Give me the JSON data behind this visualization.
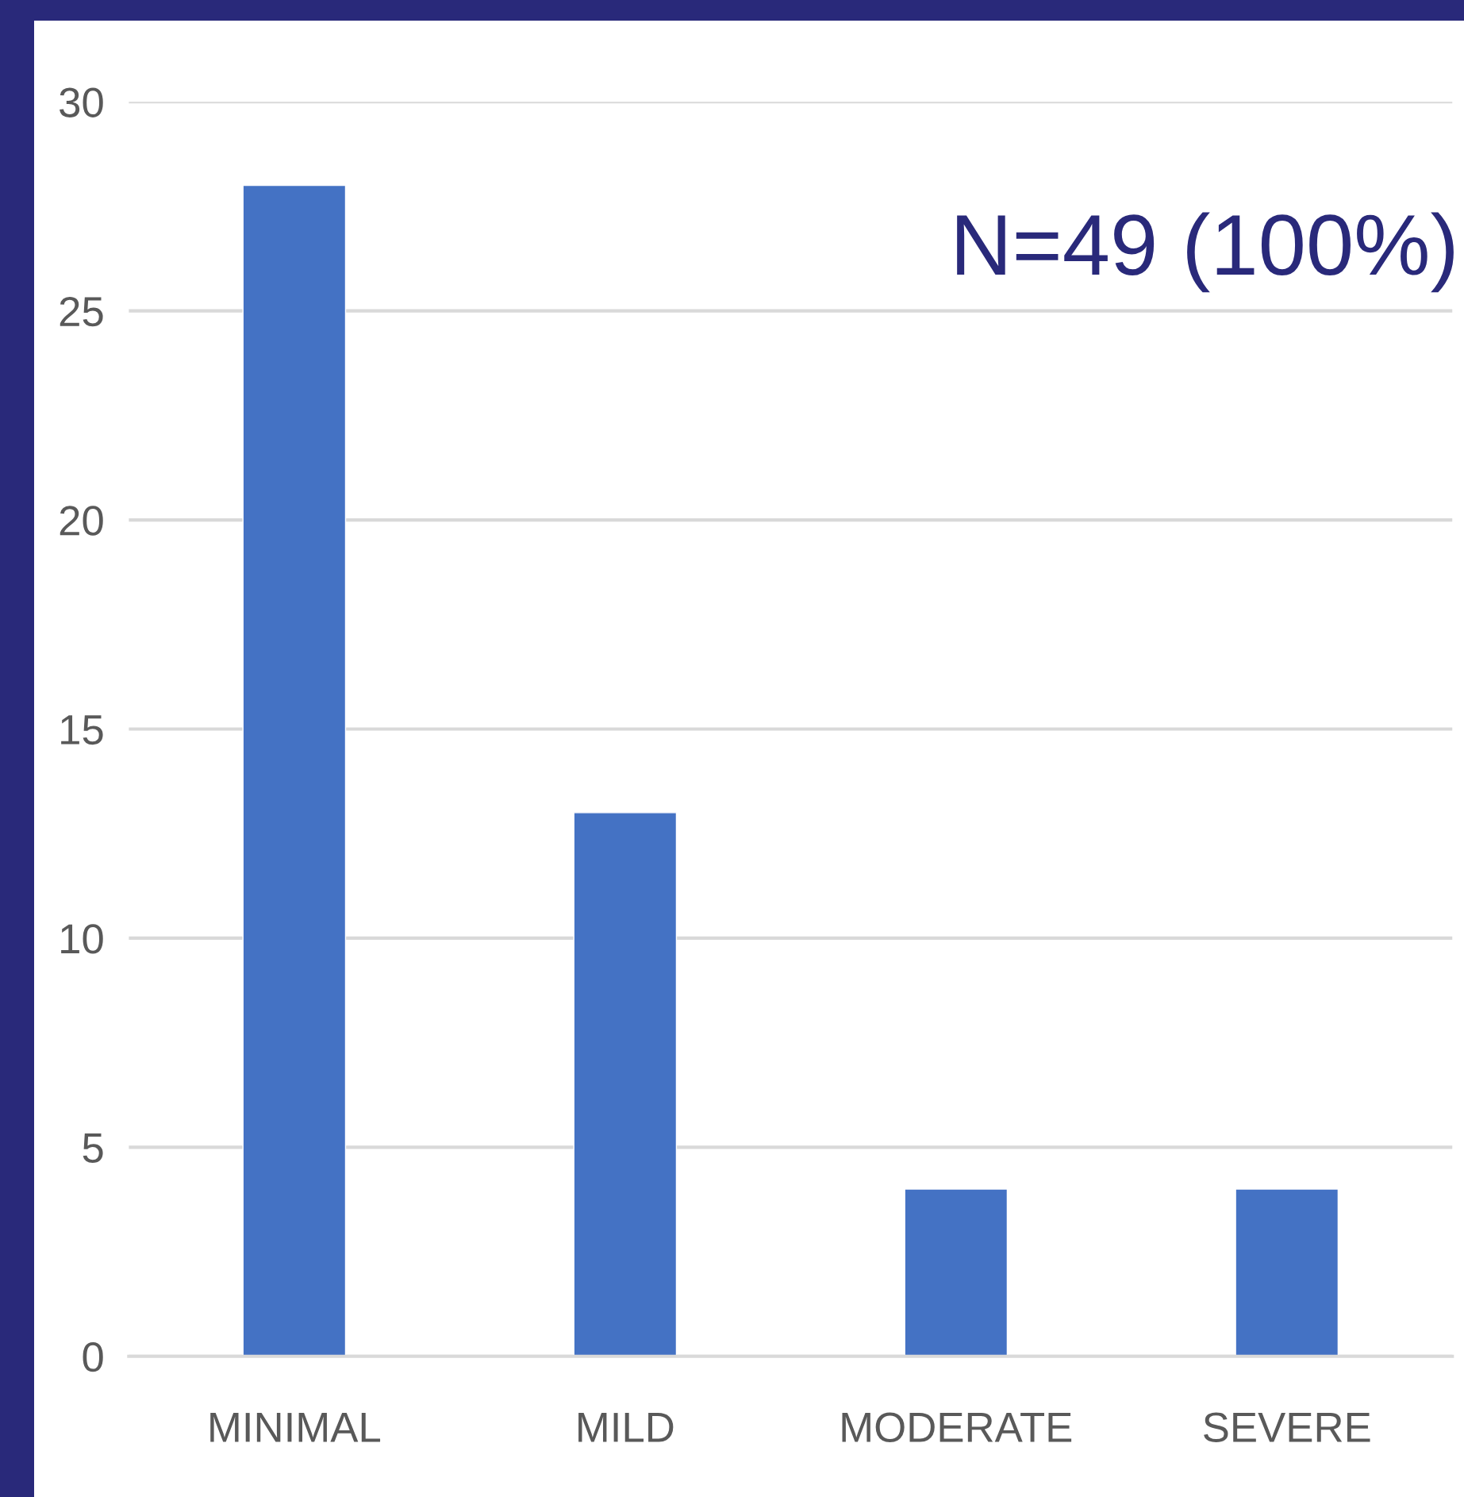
{
  "chart_data": {
    "type": "bar",
    "categories": [
      "MINIMAL",
      "MILD",
      "MODERATE",
      "SEVERE"
    ],
    "values": [
      28,
      13,
      4,
      4
    ],
    "color": "#4472c4",
    "ylim": [
      0,
      30
    ],
    "yticks": [
      0,
      5,
      10,
      15,
      20,
      25,
      30
    ],
    "grid": "y",
    "annotations": [
      "N=49 (100%)"
    ]
  }
}
